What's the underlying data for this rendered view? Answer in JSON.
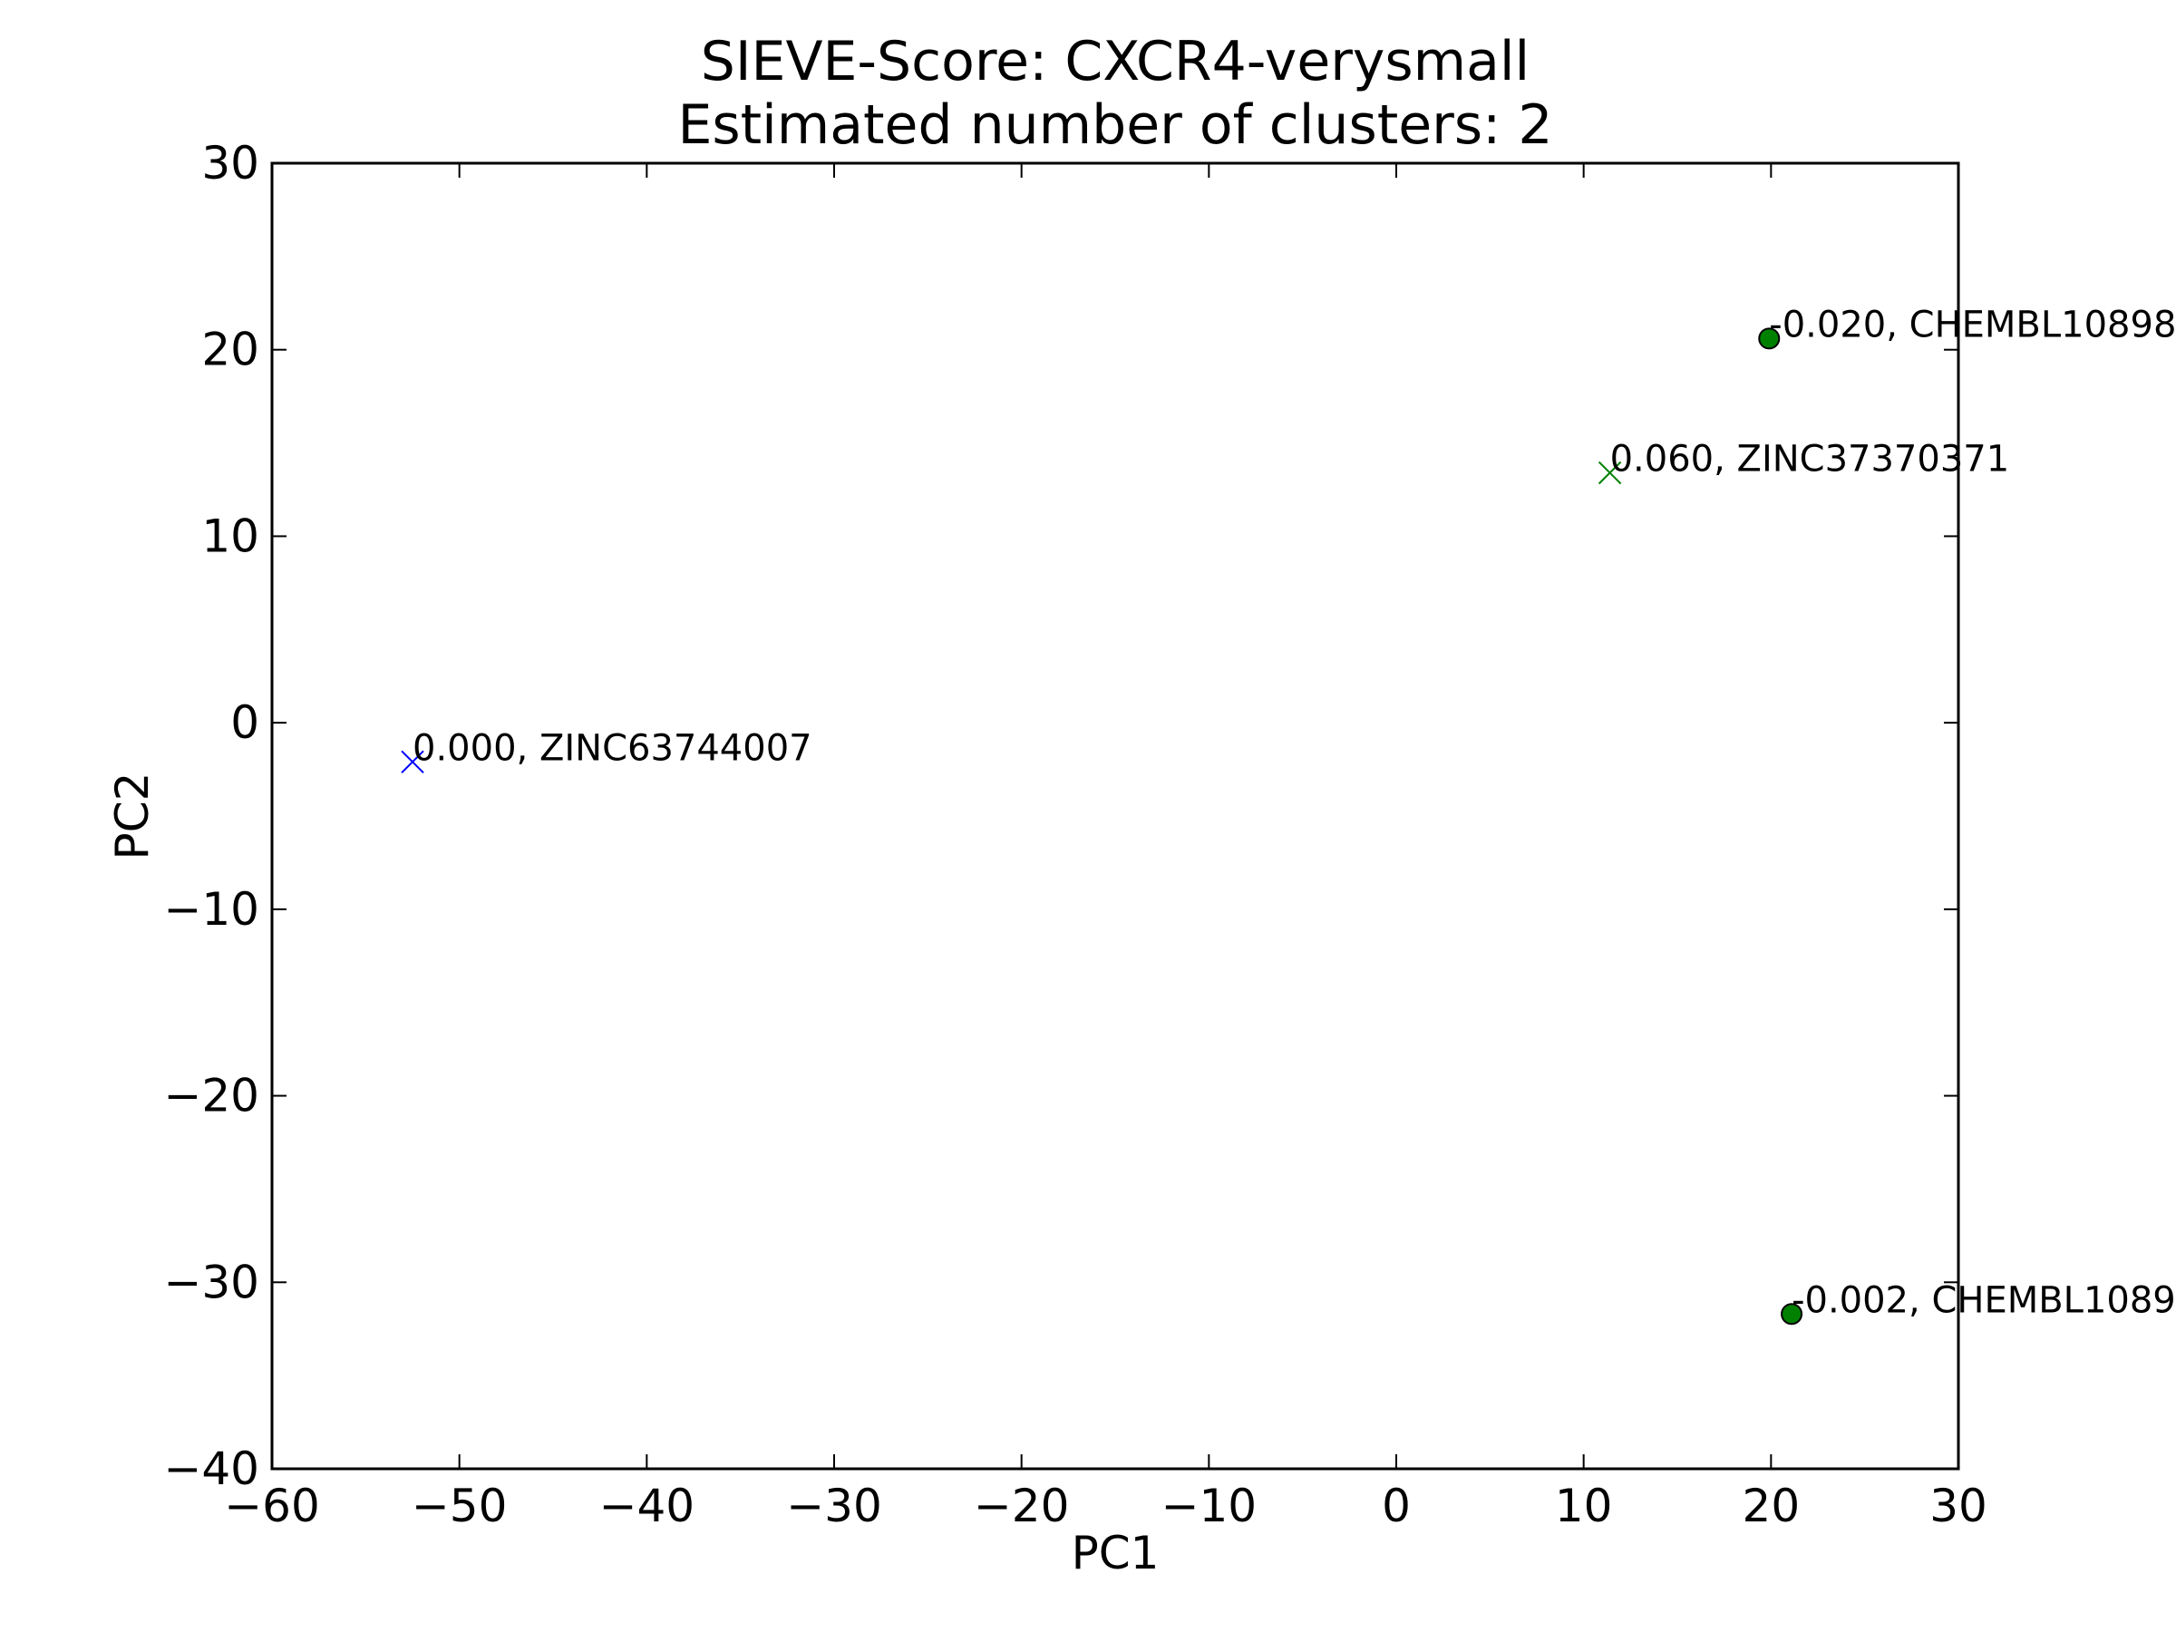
{
  "chart_data": {
    "type": "scatter",
    "title": "SIEVE-Score: CXCR4-verysmall",
    "subtitle": "Estimated number of clusters: 2",
    "xlabel": "PC1",
    "ylabel": "PC2",
    "xlim": [
      -60,
      30
    ],
    "ylim": [
      -40,
      30
    ],
    "xticks": [
      -60,
      -50,
      -40,
      -30,
      -20,
      -10,
      0,
      10,
      20,
      30
    ],
    "yticks": [
      -40,
      -30,
      -20,
      -10,
      0,
      10,
      20,
      30
    ],
    "grid": false,
    "points": [
      {
        "x": -52.5,
        "y": -2.1,
        "marker": "x",
        "color": "#0000ff",
        "label": "0.000, ZINC63744007"
      },
      {
        "x": 11.4,
        "y": 13.4,
        "marker": "x",
        "color": "#008000",
        "label": "0.060, ZINC37370371"
      },
      {
        "x": 19.9,
        "y": 20.6,
        "marker": "o",
        "color": "#008000",
        "label": "-0.020, CHEMBL10898"
      },
      {
        "x": 21.1,
        "y": -31.7,
        "marker": "o",
        "color": "#008000",
        "label": "-0.002, CHEMBL1089"
      }
    ]
  }
}
